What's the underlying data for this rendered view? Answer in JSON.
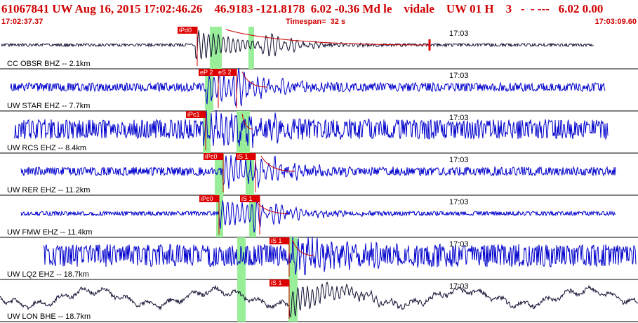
{
  "header": {
    "title": "61067841 UW Aug 16, 2015 17:02:46.26    46.9183 -121.8178  6.02 -0.36 Md le    vidale    UW 01 H    3   -  - ---   6.02 0.00",
    "start_time": "17:02:37.37",
    "timespan": "Timespan=  32 s",
    "end_time": "17:03:09.60"
  },
  "colors": {
    "header_red": "#d00000",
    "trace_blue": "#0000cc",
    "trace_black": "#111133",
    "pick_red": "#dd0000",
    "green_band": "#99ee99",
    "coda": "#cc0000"
  },
  "tick_label": "17:03",
  "panels": [
    {
      "label": "CC OBSR BHZ -- 2.1km",
      "picks": [
        "iPd0"
      ],
      "color": "black",
      "amp": 2
    },
    {
      "label": "UW STAR EHZ -- 7.7km",
      "picks": [
        "eP 2",
        "eS 2"
      ],
      "color": "blue",
      "amp": 6
    },
    {
      "label": "UW RCS EHZ -- 8.4km",
      "picks": [
        "iPc1"
      ],
      "color": "blue",
      "amp": 14
    },
    {
      "label": "UW RER EHZ -- 11.2km",
      "picks": [
        "iPc0",
        "iS 1"
      ],
      "color": "blue",
      "amp": 6
    },
    {
      "label": "UW FMW EHZ -- 11.4km",
      "picks": [
        "iPc0",
        "iS 1"
      ],
      "color": "blue",
      "amp": 3
    },
    {
      "label": "UW LQ2 EHZ -- 18.7km",
      "picks": [
        "iS 1"
      ],
      "color": "blue",
      "amp": 16
    },
    {
      "label": "UW LON BHE -- 18.7km",
      "picks": [
        "iS 1"
      ],
      "color": "black",
      "amp": 12
    }
  ]
}
